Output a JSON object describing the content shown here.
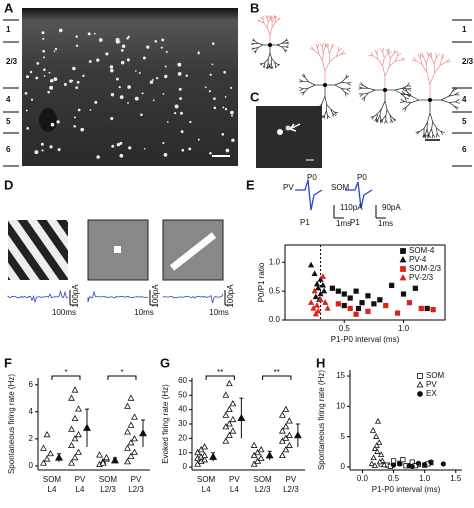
{
  "panels": {
    "a": {
      "label": "A",
      "layers": [
        "1",
        "2/3",
        "4",
        "5",
        "6"
      ]
    },
    "b": {
      "label": "B",
      "layers": [
        "1",
        "2/3",
        "4",
        "5",
        "6"
      ]
    },
    "c": {
      "label": "C"
    },
    "d": {
      "label": "D",
      "current": [
        "100pA",
        "100pA",
        "100pA"
      ],
      "time": [
        "100ms",
        "10ms",
        "10ms"
      ]
    }
  },
  "chart_data": [
    {
      "type": "scatter",
      "panel": "E",
      "xlabel": "P1-P0 interval (ms)",
      "ylabel": "P0/P1 ratio",
      "annotations": [
        "PV",
        "P0",
        "P1",
        "110pA",
        "1ms",
        "SOM",
        "P0",
        "P1",
        "90pA",
        "1ms"
      ],
      "xlim": [
        0,
        1.35
      ],
      "ylim": [
        0,
        1.3
      ],
      "xticks": [
        0.5,
        {
          "value": 1,
          "label": "1.0"
        }
      ],
      "yticks": [
        {
          "value": 0,
          "label": "0.0"
        },
        0.5,
        {
          "value": 1,
          "label": "1.0"
        }
      ],
      "reference_x": 0.3,
      "frame": true,
      "legend": "upper-right",
      "series": [
        {
          "name": "SOM-4",
          "color": "#111111",
          "marker": "square",
          "filled": true,
          "x": [
            0.4,
            0.45,
            0.5,
            0.55,
            0.6,
            0.65,
            0.7,
            0.75,
            0.8,
            0.9,
            1.0,
            1.1,
            1.2,
            0.5,
            0.62
          ],
          "values": [
            0.55,
            0.5,
            0.45,
            0.38,
            0.5,
            0.3,
            0.42,
            0.28,
            0.35,
            0.6,
            0.45,
            0.55,
            0.2,
            0.25,
            0.2
          ]
        },
        {
          "name": "PV-4",
          "color": "#111111",
          "marker": "triangle",
          "filled": true,
          "x": [
            0.22,
            0.25,
            0.27,
            0.28,
            0.3,
            0.3,
            0.32,
            0.33,
            0.26,
            0.29
          ],
          "values": [
            0.95,
            0.8,
            0.62,
            0.55,
            0.7,
            0.45,
            0.6,
            0.5,
            0.4,
            0.35
          ]
        },
        {
          "name": "SOM-2/3",
          "color": "#e0201b",
          "marker": "square",
          "filled": true,
          "x": [
            0.45,
            0.55,
            0.7,
            0.85,
            0.95,
            1.05,
            1.15,
            0.6,
            1.25
          ],
          "values": [
            0.28,
            0.2,
            0.15,
            0.25,
            0.12,
            0.3,
            0.2,
            0.1,
            0.18
          ]
        },
        {
          "name": "PV-2/3",
          "color": "#e0201b",
          "marker": "triangle",
          "filled": true,
          "x": [
            0.22,
            0.24,
            0.26,
            0.27,
            0.28,
            0.3,
            0.32,
            0.34,
            0.25,
            0.36
          ],
          "values": [
            0.3,
            0.2,
            0.1,
            0.25,
            0.15,
            0.35,
            0.75,
            0.3,
            0.5,
            0.2
          ]
        }
      ]
    },
    {
      "type": "strip",
      "panel": "F",
      "ylabel": "Spontaneous firing rate (Hz)",
      "categories": [
        "SOM",
        "PV",
        "SOM",
        "PV"
      ],
      "subcategories": [
        "L4",
        "L4",
        "L2/3",
        "L2/3"
      ],
      "ylim": [
        -0.3,
        6.5
      ],
      "yticks": [
        0,
        2,
        4,
        6
      ],
      "significance": [
        "*",
        "*"
      ],
      "points": [
        [
          0.2,
          0.5,
          0.9,
          1.3,
          2.3
        ],
        [
          0.2,
          0.6,
          1.0,
          1.5,
          2.0,
          2.3,
          2.7,
          3.5,
          4.2,
          5.0,
          5.6
        ],
        [
          0.1,
          0.3,
          0.5,
          0.8,
          0.2,
          0.6
        ],
        [
          0.3,
          0.7,
          1.0,
          1.3,
          1.7,
          2.0,
          2.5,
          3.0,
          3.6,
          4.4,
          5.0
        ]
      ],
      "means": [
        0.6,
        2.8,
        0.4,
        2.4
      ],
      "errors": [
        0.3,
        1.4,
        0.2,
        1.0
      ],
      "color": "#111111"
    },
    {
      "type": "strip",
      "panel": "G",
      "ylabel": "Evoked firing rate (Hz)",
      "categories": [
        "SOM",
        "PV",
        "SOM",
        "PV"
      ],
      "subcategories": [
        "L4",
        "L4",
        "L2/3",
        "L2/3"
      ],
      "ylim": [
        -2,
        62
      ],
      "yticks": [
        0,
        10,
        20,
        30,
        40,
        50,
        60
      ],
      "significance": [
        "**",
        "**"
      ],
      "points": [
        [
          2,
          4,
          5,
          6,
          7,
          8,
          10,
          12,
          14
        ],
        [
          18,
          22,
          25,
          28,
          30,
          33,
          36,
          40,
          44,
          50,
          58
        ],
        [
          2,
          4,
          6,
          8,
          10,
          12,
          15
        ],
        [
          8,
          12,
          15,
          18,
          20,
          22,
          25,
          28,
          32,
          36,
          40
        ]
      ],
      "means": [
        7,
        34,
        8,
        22
      ],
      "errors": [
        3,
        14,
        3,
        8
      ],
      "color": "#111111"
    },
    {
      "type": "scatter",
      "panel": "H",
      "xlabel": "P1-P0 interval (ms)",
      "ylabel": "Spontaneous firing rate (Hz)",
      "xlim": [
        -0.2,
        1.6
      ],
      "ylim": [
        -0.5,
        16
      ],
      "xticks": [
        {
          "value": 0,
          "label": "0.0"
        },
        0.5,
        {
          "value": 1,
          "label": "1.0"
        },
        1.5
      ],
      "yticks": [
        0,
        5,
        10,
        15
      ],
      "frame": false,
      "legend": "upper-right",
      "series": [
        {
          "name": "SOM",
          "color": "#111111",
          "marker": "square",
          "filled": false,
          "x": [
            0.3,
            0.4,
            0.5,
            0.6,
            0.7,
            0.8,
            0.9,
            1.0,
            1.1,
            0.45,
            0.65,
            0.85,
            1.05
          ],
          "values": [
            0.5,
            0.3,
            1,
            0.6,
            0.2,
            0.8,
            0.4,
            0.3,
            0.7,
            0.1,
            1.2,
            0.2,
            0.5
          ]
        },
        {
          "name": "PV",
          "color": "#111111",
          "marker": "triangle",
          "filled": false,
          "x": [
            0.15,
            0.18,
            0.2,
            0.22,
            0.25,
            0.27,
            0.3,
            0.32,
            0.2,
            0.24,
            0.28,
            0.35,
            0.17,
            0.23
          ],
          "values": [
            0.5,
            1.5,
            3,
            5,
            7.5,
            4,
            2,
            1,
            0.2,
            2.5,
            0.8,
            0.3,
            6,
            3.5
          ]
        },
        {
          "name": "EX",
          "color": "#111111",
          "marker": "circle",
          "filled": true,
          "x": [
            0.5,
            0.6,
            0.75,
            0.9,
            1.0,
            1.1,
            1.3,
            0.8
          ],
          "values": [
            0.3,
            0.5,
            0.2,
            0.6,
            0.4,
            0.8,
            0.5,
            0.1
          ]
        }
      ]
    }
  ]
}
